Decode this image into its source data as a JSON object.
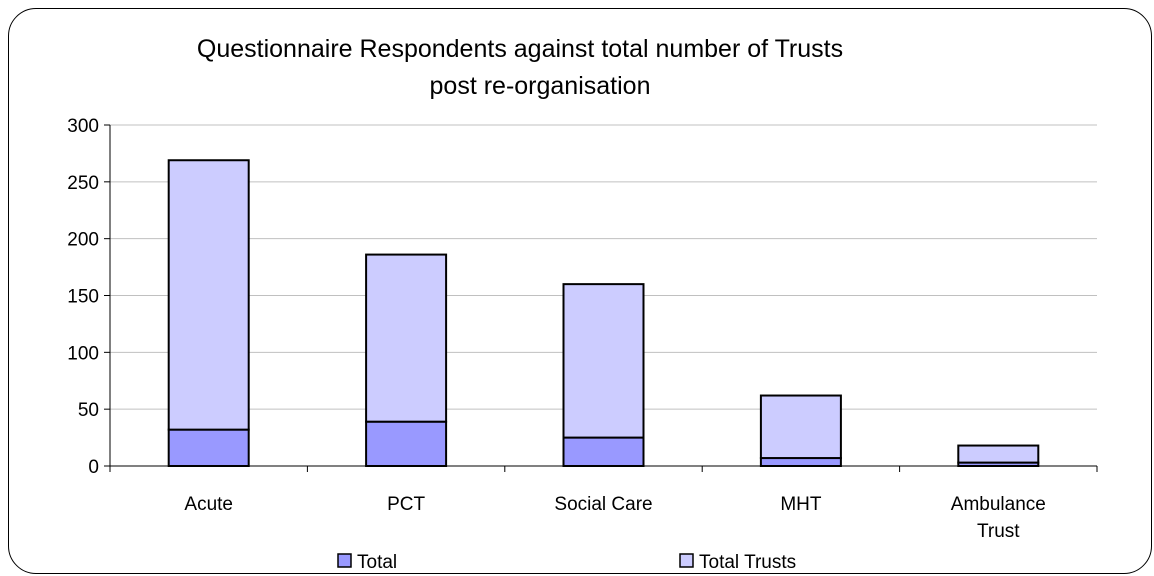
{
  "chart_data": {
    "type": "bar",
    "stacked": true,
    "title_lines": [
      "Questionnaire Respondents against total number of Trusts",
      "post re-organisation"
    ],
    "categories": [
      [
        "Acute"
      ],
      [
        "PCT"
      ],
      [
        "Social Care"
      ],
      [
        "MHT"
      ],
      [
        "Ambulance",
        "Trust"
      ]
    ],
    "series": [
      {
        "name": "Total",
        "values": [
          32,
          39,
          25,
          7,
          3
        ],
        "color": "#9999ff"
      },
      {
        "name": "Total Trusts",
        "values": [
          237,
          147,
          135,
          55,
          15
        ],
        "color": "#ccccff"
      }
    ],
    "ylim": [
      0,
      300
    ],
    "yticks": [
      "0",
      "50",
      "100",
      "150",
      "200",
      "250",
      "300"
    ],
    "grid": true,
    "legend_position": "bottom"
  }
}
